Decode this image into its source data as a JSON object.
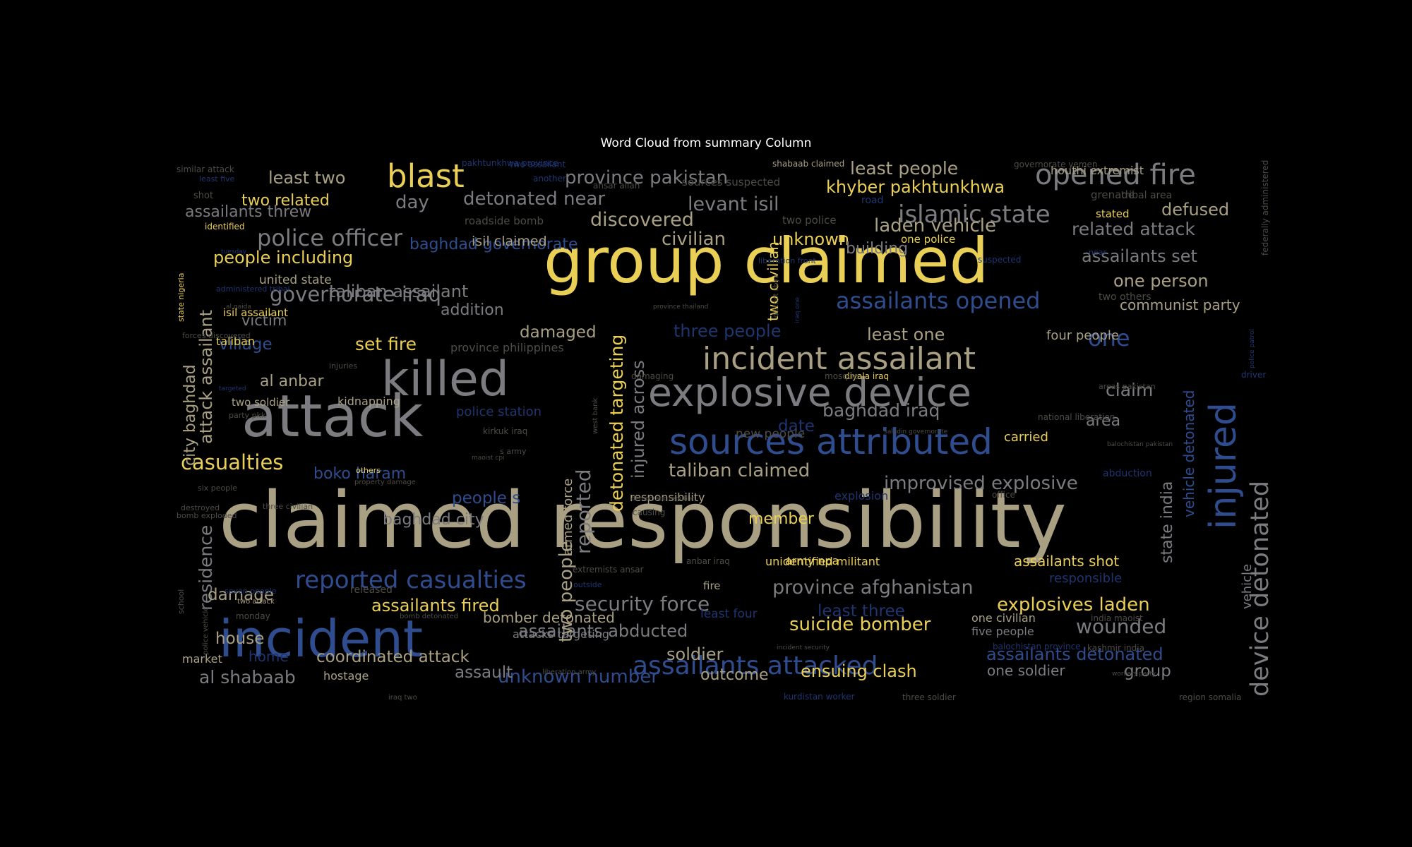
{
  "figure": {
    "title": "Word Cloud from summary Column",
    "background": "#000000",
    "title_color": "#ffffff",
    "palette": {
      "gold": "#e9cf56",
      "tan": "#a9a083",
      "grey": "#7b7b80",
      "blue": "#2f4d8e",
      "navy": "#1f3570",
      "dim": "#4e4c46"
    }
  },
  "words": [
    {
      "text": "claimed responsibility",
      "color": "tan"
    },
    {
      "text": "group claimed",
      "color": "gold"
    },
    {
      "text": "attack",
      "color": "grey"
    },
    {
      "text": "incident",
      "color": "blue"
    },
    {
      "text": "killed",
      "color": "grey"
    },
    {
      "text": "explosive device",
      "color": "grey"
    },
    {
      "text": "sources attributed",
      "color": "blue"
    },
    {
      "text": "injured",
      "color": "blue"
    },
    {
      "text": "incident assailant",
      "color": "tan"
    },
    {
      "text": "opened fire",
      "color": "grey"
    },
    {
      "text": "blast",
      "color": "gold"
    },
    {
      "text": "device detonated",
      "color": "grey"
    },
    {
      "text": "assailants attacked",
      "color": "blue"
    },
    {
      "text": "islamic state",
      "color": "grey"
    },
    {
      "text": "reported casualties",
      "color": "blue"
    },
    {
      "text": "police officer",
      "color": "grey"
    },
    {
      "text": "assailants opened",
      "color": "blue"
    },
    {
      "text": "governorate iraq",
      "color": "grey"
    },
    {
      "text": "casualties",
      "color": "gold"
    },
    {
      "text": "province pakistan",
      "color": "grey"
    },
    {
      "text": "suicide bomber",
      "color": "gold"
    },
    {
      "text": "wounded",
      "color": "grey"
    },
    {
      "text": "least people",
      "color": "tan"
    },
    {
      "text": "khyber pakhtunkhwa",
      "color": "gold"
    },
    {
      "text": "province afghanistan",
      "color": "grey"
    },
    {
      "text": "improvised explosive",
      "color": "grey"
    },
    {
      "text": "explosives laden",
      "color": "gold"
    },
    {
      "text": "assailants detonated",
      "color": "blue"
    },
    {
      "text": "related attack",
      "color": "grey"
    },
    {
      "text": "assailants set",
      "color": "grey"
    },
    {
      "text": "detonated near",
      "color": "grey"
    },
    {
      "text": "taliban claimed",
      "color": "tan"
    },
    {
      "text": "laden vehicle",
      "color": "tan"
    },
    {
      "text": "baghdad iraq",
      "color": "grey"
    },
    {
      "text": "one person",
      "color": "tan"
    },
    {
      "text": "defused",
      "color": "tan"
    },
    {
      "text": "security force",
      "color": "grey"
    },
    {
      "text": "coordinated attack",
      "color": "tan"
    },
    {
      "text": "assailants fired",
      "color": "gold"
    },
    {
      "text": "unknown number",
      "color": "blue"
    },
    {
      "text": "ensuing clash",
      "color": "gold"
    },
    {
      "text": "people including",
      "color": "gold"
    },
    {
      "text": "least two",
      "color": "tan"
    },
    {
      "text": "assailants threw",
      "color": "grey"
    },
    {
      "text": "levant isil",
      "color": "grey"
    },
    {
      "text": "discovered",
      "color": "tan"
    },
    {
      "text": "al shabaab",
      "color": "grey"
    },
    {
      "text": "assailants abducted",
      "color": "grey"
    },
    {
      "text": "taliban assailant",
      "color": "grey"
    },
    {
      "text": "baghdad governorate",
      "color": "blue"
    },
    {
      "text": "two people",
      "color": "tan"
    },
    {
      "text": "reported",
      "color": "grey"
    },
    {
      "text": "detonated targeting",
      "color": "gold"
    },
    {
      "text": "injured across",
      "color": "grey"
    },
    {
      "text": "attack assailant",
      "color": "tan"
    },
    {
      "text": "city baghdad",
      "color": "tan"
    },
    {
      "text": "residence",
      "color": "grey"
    },
    {
      "text": "two civilian",
      "color": "gold"
    },
    {
      "text": "state india",
      "color": "grey"
    },
    {
      "text": "vehicle detonated",
      "color": "blue"
    },
    {
      "text": "one",
      "color": "blue"
    },
    {
      "text": "least one",
      "color": "tan"
    },
    {
      "text": "day",
      "color": "grey"
    },
    {
      "text": "civilian",
      "color": "tan"
    },
    {
      "text": "unknown",
      "color": "gold"
    },
    {
      "text": "building",
      "color": "grey"
    },
    {
      "text": "two related",
      "color": "gold"
    },
    {
      "text": "set fire",
      "color": "gold"
    },
    {
      "text": "damaged",
      "color": "tan"
    },
    {
      "text": "three people",
      "color": "navy"
    },
    {
      "text": "boko haram",
      "color": "blue"
    },
    {
      "text": "people s",
      "color": "blue"
    },
    {
      "text": "baghdad city",
      "color": "grey"
    },
    {
      "text": "al anbar",
      "color": "tan"
    },
    {
      "text": "village",
      "color": "blue"
    },
    {
      "text": "victim",
      "color": "grey"
    },
    {
      "text": "addition",
      "color": "grey"
    },
    {
      "text": "isil claimed",
      "color": "tan"
    },
    {
      "text": "claim",
      "color": "grey"
    },
    {
      "text": "area",
      "color": "grey"
    },
    {
      "text": "date",
      "color": "navy"
    },
    {
      "text": "house",
      "color": "tan"
    },
    {
      "text": "damage",
      "color": "tan"
    },
    {
      "text": "member",
      "color": "gold"
    },
    {
      "text": "soldier",
      "color": "tan"
    },
    {
      "text": "assault",
      "color": "grey"
    },
    {
      "text": "outcome",
      "color": "tan"
    },
    {
      "text": "group",
      "color": "grey"
    },
    {
      "text": "one soldier",
      "color": "grey"
    },
    {
      "text": "least three",
      "color": "navy"
    },
    {
      "text": "assailants shot",
      "color": "gold"
    },
    {
      "text": "bomber detonated",
      "color": "tan"
    },
    {
      "text": "communist party",
      "color": "tan"
    },
    {
      "text": "four people",
      "color": "tan"
    },
    {
      "text": "houthi extremist",
      "color": "tan"
    },
    {
      "text": "armed force",
      "color": "tan"
    },
    {
      "text": "vehicle",
      "color": "grey"
    },
    {
      "text": "home",
      "color": "navy"
    },
    {
      "text": "market",
      "color": "tan"
    },
    {
      "text": "hostage",
      "color": "tan"
    },
    {
      "text": "united state",
      "color": "tan"
    },
    {
      "text": "taliban",
      "color": "gold"
    },
    {
      "text": "isil assailant",
      "color": "gold"
    },
    {
      "text": "two soldier",
      "color": "tan"
    },
    {
      "text": "kidnapping",
      "color": "tan"
    },
    {
      "text": "police station",
      "color": "navy"
    },
    {
      "text": "new people",
      "color": "dim"
    },
    {
      "text": "carried",
      "color": "gold"
    },
    {
      "text": "responsibility",
      "color": "tan"
    },
    {
      "text": "unidentified militant",
      "color": "gold"
    },
    {
      "text": "army npa",
      "color": "gold"
    },
    {
      "text": "responsible",
      "color": "navy"
    },
    {
      "text": "fire",
      "color": "tan"
    },
    {
      "text": "least four",
      "color": "navy"
    },
    {
      "text": "one civilian",
      "color": "tan"
    },
    {
      "text": "five people",
      "color": "grey"
    },
    {
      "text": "explosion",
      "color": "navy"
    },
    {
      "text": "province philippines",
      "color": "dim"
    },
    {
      "text": "attacks targeting",
      "color": "grey"
    },
    {
      "text": "released",
      "color": "dim"
    },
    {
      "text": "grenade",
      "color": "dim"
    },
    {
      "text": "tribal area",
      "color": "dim"
    },
    {
      "text": "stated",
      "color": "gold"
    },
    {
      "text": "two police",
      "color": "dim"
    },
    {
      "text": "one police",
      "color": "gold"
    },
    {
      "text": "road",
      "color": "navy"
    },
    {
      "text": "roadside bomb",
      "color": "dim"
    },
    {
      "text": "sources suspected",
      "color": "dim"
    },
    {
      "text": "shabaab claimed",
      "color": "tan"
    },
    {
      "text": "ansar allah",
      "color": "dim"
    },
    {
      "text": "two assailant",
      "color": "navy"
    },
    {
      "text": "another",
      "color": "navy"
    },
    {
      "text": "governorate yemen",
      "color": "dim"
    },
    {
      "text": "similar attack",
      "color": "dim"
    },
    {
      "text": "least five",
      "color": "navy"
    },
    {
      "text": "shot",
      "color": "dim"
    },
    {
      "text": "identified",
      "color": "gold"
    },
    {
      "text": "two others",
      "color": "dim"
    },
    {
      "text": "near",
      "color": "navy"
    },
    {
      "text": "federally administered",
      "color": "dim"
    },
    {
      "text": "state nigeria",
      "color": "gold"
    },
    {
      "text": "administered tribal",
      "color": "navy"
    },
    {
      "text": "forces discovered",
      "color": "dim"
    },
    {
      "text": "injuries",
      "color": "dim"
    },
    {
      "text": "damaging",
      "color": "dim"
    },
    {
      "text": "diyala iraq",
      "color": "gold"
    },
    {
      "text": "mosque",
      "color": "dim"
    },
    {
      "text": "areas pakistan",
      "color": "dim"
    },
    {
      "text": "driver",
      "color": "navy"
    },
    {
      "text": "kirkuk iraq",
      "color": "dim"
    },
    {
      "text": "s army",
      "color": "dim"
    },
    {
      "text": "others",
      "color": "gold"
    },
    {
      "text": "six people",
      "color": "dim"
    },
    {
      "text": "property damage",
      "color": "dim"
    },
    {
      "text": "destroyed",
      "color": "dim"
    },
    {
      "text": "three civilian",
      "color": "dim"
    },
    {
      "text": "bomb exploded",
      "color": "dim"
    },
    {
      "text": "causing",
      "color": "dim"
    },
    {
      "text": "extremists ansar",
      "color": "dim"
    },
    {
      "text": "anbar iraq",
      "color": "dim"
    },
    {
      "text": "outside",
      "color": "navy"
    },
    {
      "text": "seven people",
      "color": "navy"
    },
    {
      "text": "two attack",
      "color": "tan"
    },
    {
      "text": "monday",
      "color": "dim"
    },
    {
      "text": "bomb detonated",
      "color": "dim"
    },
    {
      "text": "iraq two",
      "color": "dim"
    },
    {
      "text": "kurdistan worker",
      "color": "navy"
    },
    {
      "text": "three soldier",
      "color": "dim"
    },
    {
      "text": "region somalia",
      "color": "dim"
    },
    {
      "text": "liberation army",
      "color": "dim"
    },
    {
      "text": "kashmir india",
      "color": "dim"
    },
    {
      "text": "balochistan province",
      "color": "navy"
    },
    {
      "text": "india maoist",
      "color": "dim"
    },
    {
      "text": "abduction",
      "color": "navy"
    },
    {
      "text": "office",
      "color": "dim"
    },
    {
      "text": "school",
      "color": "dim"
    },
    {
      "text": "saladin governorate",
      "color": "dim"
    },
    {
      "text": "national liberation",
      "color": "dim"
    },
    {
      "text": "pakhtunkhwa province",
      "color": "navy"
    },
    {
      "text": "suspected",
      "color": "navy"
    },
    {
      "text": "liberation front",
      "color": "navy"
    },
    {
      "text": "iraq one",
      "color": "navy"
    },
    {
      "text": "district libya",
      "color": "dim"
    },
    {
      "text": "province thailand",
      "color": "dim"
    },
    {
      "text": "west bank",
      "color": "dim"
    },
    {
      "text": "democratic republic",
      "color": "dim"
    },
    {
      "text": "maoist cpi",
      "color": "dim"
    },
    {
      "text": "party pkk",
      "color": "dim"
    },
    {
      "text": "targeted",
      "color": "navy"
    },
    {
      "text": "tuesday",
      "color": "navy"
    },
    {
      "text": "al qaida",
      "color": "dim"
    },
    {
      "text": "incident security",
      "color": "dim"
    },
    {
      "text": "workers party",
      "color": "dim"
    },
    {
      "text": "balochistan pakistan",
      "color": "dim"
    },
    {
      "text": "police patrol",
      "color": "navy"
    },
    {
      "text": "police vehicle",
      "color": "dim"
    },
    {
      "text": "unknown perpetrator",
      "color": "navy"
    }
  ]
}
